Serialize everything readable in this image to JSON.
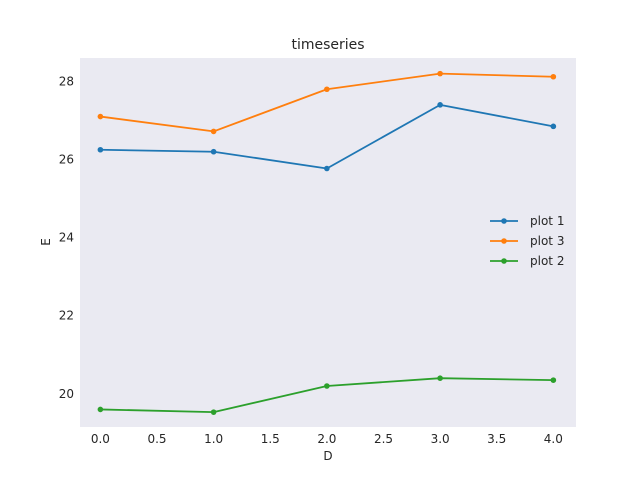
{
  "chart_data": {
    "type": "line",
    "title": "timeseries",
    "xlabel": "D",
    "ylabel": "E",
    "x": [
      0,
      1,
      2,
      3,
      4
    ],
    "xlim": [
      -0.18,
      4.2
    ],
    "ylim": [
      19.15,
      28.6
    ],
    "xticks": [
      0.0,
      0.5,
      1.0,
      1.5,
      2.0,
      2.5,
      3.0,
      3.5,
      4.0
    ],
    "xtick_labels": [
      "0.0",
      "0.5",
      "1.0",
      "1.5",
      "2.0",
      "2.5",
      "3.0",
      "3.5",
      "4.0"
    ],
    "yticks": [
      20,
      22,
      24,
      26,
      28
    ],
    "ytick_labels": [
      "20",
      "22",
      "24",
      "26",
      "28"
    ],
    "grid": false,
    "legend_position": "center-right",
    "background": "#eaeaf2",
    "series": [
      {
        "name": "plot 1",
        "color": "#1f77b4",
        "values": [
          26.25,
          26.2,
          25.77,
          27.4,
          26.85
        ]
      },
      {
        "name": "plot 3",
        "color": "#ff7f0e",
        "values": [
          27.1,
          26.72,
          27.8,
          28.2,
          28.12
        ]
      },
      {
        "name": "plot 2",
        "color": "#2ca02c",
        "values": [
          19.6,
          19.53,
          20.2,
          20.4,
          20.35
        ]
      }
    ]
  }
}
